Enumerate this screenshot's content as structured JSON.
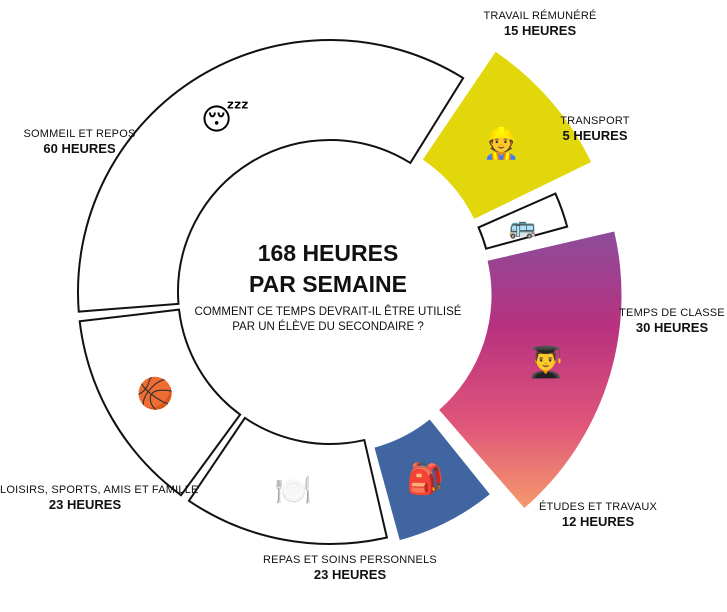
{
  "center": {
    "title_line1": "168 HEURES",
    "title_line2": "PAR SEMAINE",
    "subtitle_line1": "COMMENT CE TEMPS DEVRAIT-IL ÊTRE UTILISÉ",
    "subtitle_line2": "PAR UN ÉLÈVE DU SECONDAIRE ?"
  },
  "chart_data": {
    "type": "pie",
    "title": "168 HEURES PAR SEMAINE",
    "total_hours": 168,
    "segments": [
      {
        "key": "travail",
        "category": "TRAVAIL RÉMUNÉRÉ",
        "hours_label": "15 HEURES",
        "value": 15,
        "fill": "#e1d70a",
        "icon": "construction-worker-icon",
        "glyph": "👷",
        "exploded": true
      },
      {
        "key": "transport",
        "category": "TRANSPORT",
        "hours_label": "5 HEURES",
        "value": 5,
        "fill": "#ffffff",
        "icon": "bus-icon",
        "glyph": "🚌",
        "exploded": true
      },
      {
        "key": "classe",
        "category": "TEMPS DE CLASSE",
        "hours_label": "30 HEURES",
        "value": 30,
        "fill": "gradient",
        "gradient_colors": [
          "#8c4c9a",
          "#b8317f",
          "#e0567a",
          "#f59a6c"
        ],
        "icon": "graduate-icon",
        "glyph": "👨‍🎓",
        "exploded": true
      },
      {
        "key": "etudes",
        "category": "ÉTUDES ET TRAVAUX",
        "hours_label": "12 HEURES",
        "value": 12,
        "fill": "#4065a0",
        "icon": "backpack-icon",
        "glyph": "🎒",
        "exploded": true
      },
      {
        "key": "repas",
        "category": "REPAS ET SOINS PERSONNELS",
        "hours_label": "23 HEURES",
        "value": 23,
        "fill": "#ffffff",
        "icon": "plate-cutlery-icon",
        "glyph": "🍽️",
        "exploded": false
      },
      {
        "key": "loisirs",
        "category": "LOISIRS, SPORTS, AMIS ET FAMILLE",
        "hours_label": "23 HEURES",
        "value": 23,
        "fill": "#ffffff",
        "icon": "basketball-icon",
        "glyph": "🏀",
        "exploded": false
      },
      {
        "key": "sommeil",
        "category": "SOMMEIL ET REPOS",
        "hours_label": "60 HEURES",
        "value": 60,
        "fill": "#ffffff",
        "icon": "sleeping-face-icon",
        "glyph": "😴",
        "exploded": false
      }
    ]
  }
}
